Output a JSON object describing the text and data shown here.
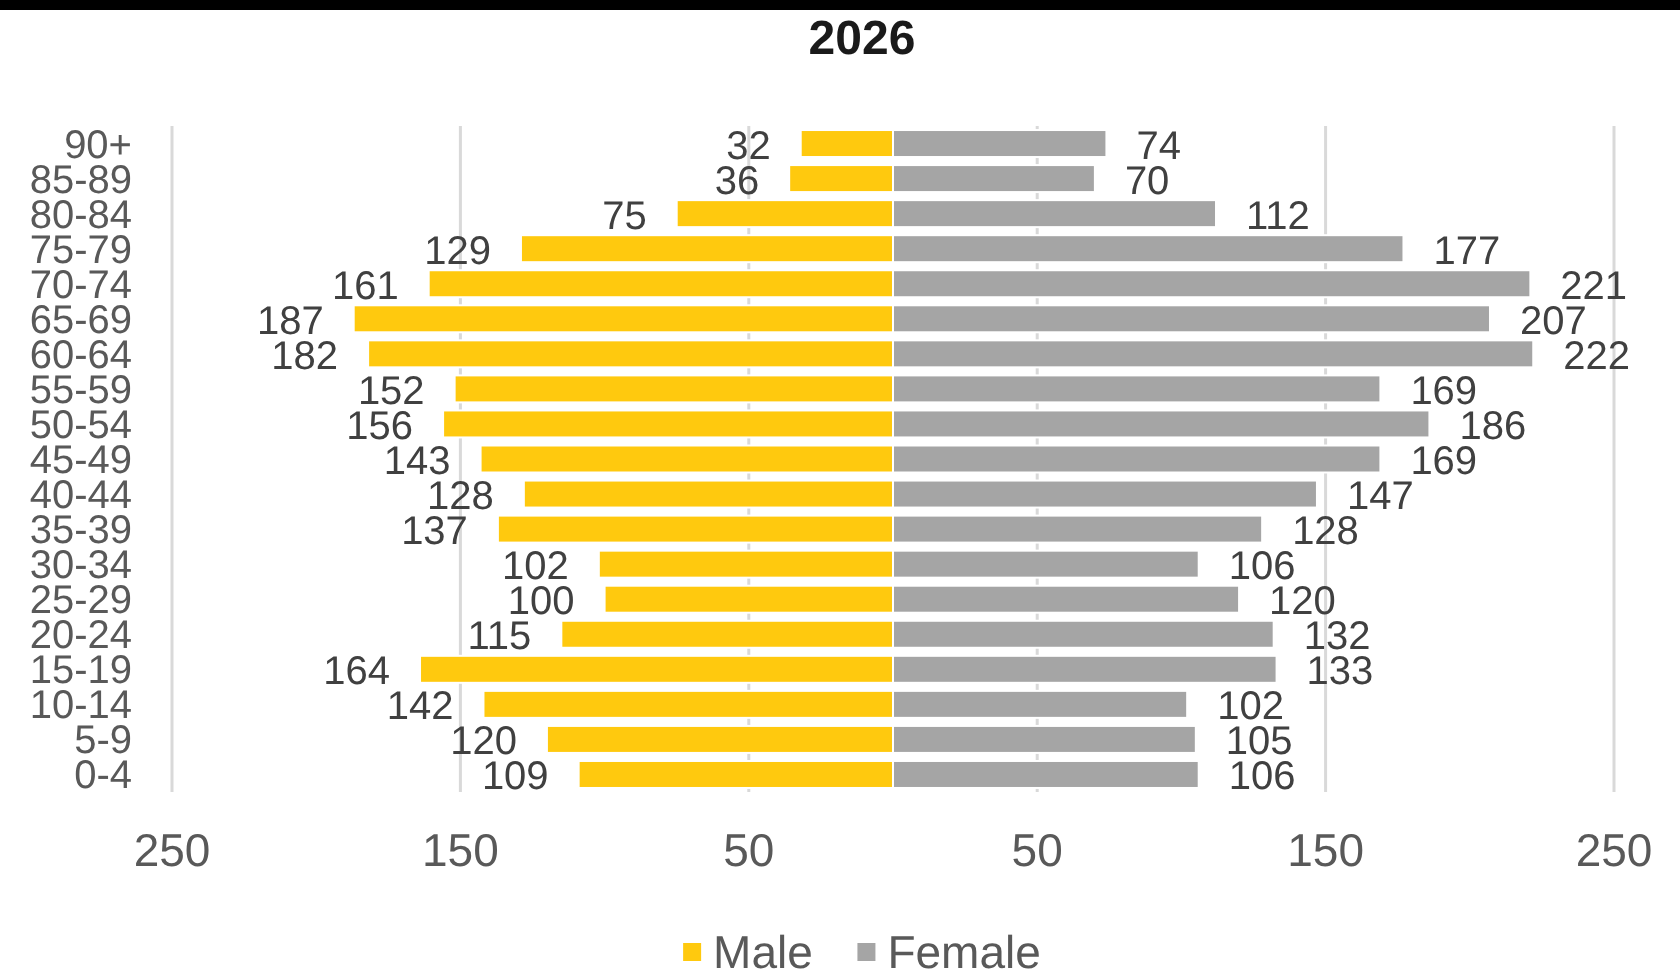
{
  "chart_data": [
    {
      "type": "bar",
      "title": "2026",
      "orientation": "horizontal",
      "categories": [
        "90+",
        "85-89",
        "80-84",
        "75-79",
        "70-74",
        "65-69",
        "60-64",
        "55-59",
        "50-54",
        "45-49",
        "40-44",
        "35-39",
        "30-34",
        "25-29",
        "20-24",
        "15-19",
        "10-14",
        "5-9",
        "0-4"
      ],
      "series": [
        {
          "name": "Male",
          "color": "#ffc90e",
          "values": [
            32,
            36,
            75,
            129,
            161,
            187,
            182,
            152,
            156,
            143,
            128,
            137,
            102,
            100,
            115,
            164,
            142,
            120,
            109
          ]
        }
      ],
      "xlim": [
        250,
        0
      ],
      "xticks": [
        250,
        150,
        50
      ],
      "grid": "x",
      "legend": "bottom",
      "data_labels": true
    },
    {
      "type": "bar",
      "orientation": "horizontal",
      "categories": [
        "90+",
        "85-89",
        "80-84",
        "75-79",
        "70-74",
        "65-69",
        "60-64",
        "55-59",
        "50-54",
        "45-49",
        "40-44",
        "35-39",
        "30-34",
        "25-29",
        "20-24",
        "15-19",
        "10-14",
        "5-9",
        "0-4"
      ],
      "series": [
        {
          "name": "Female",
          "color": "#a5a5a5",
          "values": [
            74,
            70,
            112,
            177,
            221,
            207,
            222,
            169,
            186,
            169,
            147,
            128,
            106,
            120,
            132,
            133,
            102,
            105,
            106
          ]
        }
      ],
      "xlim": [
        0,
        250
      ],
      "xticks": [
        50,
        150,
        250
      ],
      "grid": "x",
      "legend": "bottom",
      "data_labels": true,
      "tick_labels": "x"
    }
  ]
}
